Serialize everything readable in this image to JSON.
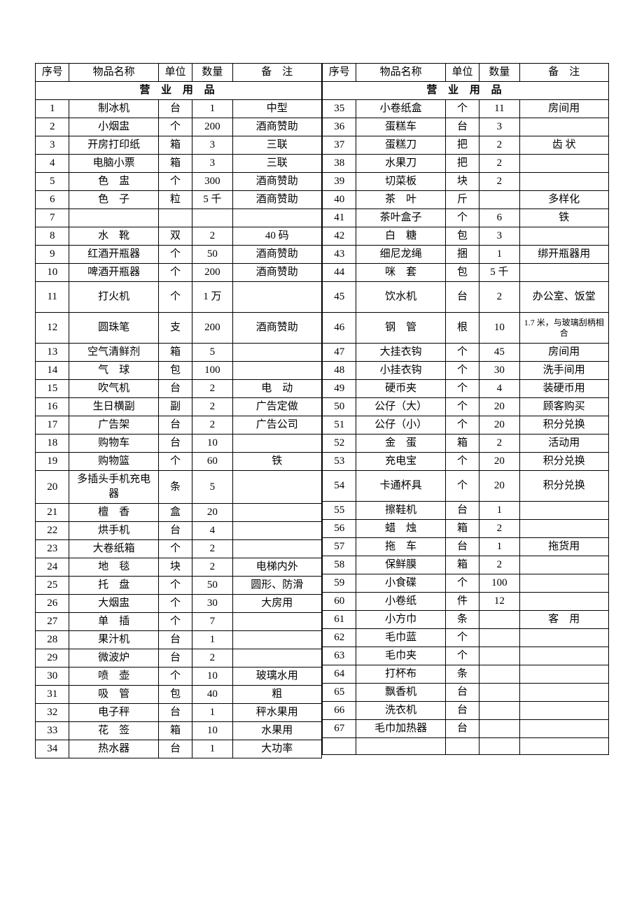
{
  "headers": {
    "seq": "序号",
    "name": "物品名称",
    "unit": "单位",
    "qty": "数量",
    "note": "备　注"
  },
  "section": "营 业 用 品",
  "left": [
    {
      "seq": "1",
      "name": "制冰机",
      "unit": "台",
      "qty": "1",
      "note": "中型"
    },
    {
      "seq": "2",
      "name": "小烟盅",
      "unit": "个",
      "qty": "200",
      "note": "酒商赞助"
    },
    {
      "seq": "3",
      "name": "开房打印纸",
      "unit": "箱",
      "qty": "3",
      "note": "三联"
    },
    {
      "seq": "4",
      "name": "电脑小票",
      "unit": "箱",
      "qty": "3",
      "note": "三联"
    },
    {
      "seq": "5",
      "name": "色　盅",
      "unit": "个",
      "qty": "300",
      "note": "酒商赞助"
    },
    {
      "seq": "6",
      "name": "色　子",
      "unit": "粒",
      "qty": "5 千",
      "note": "酒商赞助"
    },
    {
      "seq": "7",
      "name": "",
      "unit": "",
      "qty": "",
      "note": ""
    },
    {
      "seq": "8",
      "name": "水　靴",
      "unit": "双",
      "qty": "2",
      "note": "40 码"
    },
    {
      "seq": "9",
      "name": "红酒开瓶器",
      "unit": "个",
      "qty": "50",
      "note": "酒商赞助"
    },
    {
      "seq": "10",
      "name": "啤酒开瓶器",
      "unit": "个",
      "qty": "200",
      "note": "酒商赞助"
    },
    {
      "seq": "11",
      "name": "打火机",
      "unit": "个",
      "qty": "1 万",
      "note": ""
    },
    {
      "seq": "12",
      "name": "圆珠笔",
      "unit": "支",
      "qty": "200",
      "note": "酒商赞助"
    },
    {
      "seq": "13",
      "name": "空气清鲜剂",
      "unit": "箱",
      "qty": "5",
      "note": ""
    },
    {
      "seq": "14",
      "name": "气　球",
      "unit": "包",
      "qty": "100",
      "note": ""
    },
    {
      "seq": "15",
      "name": "吹气机",
      "unit": "台",
      "qty": "2",
      "note": "电　动"
    },
    {
      "seq": "16",
      "name": "生日横副",
      "unit": "副",
      "qty": "2",
      "note": "广告定做"
    },
    {
      "seq": "17",
      "name": "广告架",
      "unit": "台",
      "qty": "2",
      "note": "广告公司"
    },
    {
      "seq": "18",
      "name": "购物车",
      "unit": "台",
      "qty": "10",
      "note": ""
    },
    {
      "seq": "19",
      "name": "购物篮",
      "unit": "个",
      "qty": "60",
      "note": "铁"
    },
    {
      "seq": "20",
      "name": "多插头手机充电器",
      "unit": "条",
      "qty": "5",
      "note": ""
    },
    {
      "seq": "21",
      "name": "檀　香",
      "unit": "盒",
      "qty": "20",
      "note": ""
    },
    {
      "seq": "22",
      "name": "烘手机",
      "unit": "台",
      "qty": "4",
      "note": ""
    },
    {
      "seq": "23",
      "name": "大卷纸箱",
      "unit": "个",
      "qty": "2",
      "note": ""
    },
    {
      "seq": "24",
      "name": "地　毯",
      "unit": "块",
      "qty": "2",
      "note": "电梯内外"
    },
    {
      "seq": "25",
      "name": "托　盘",
      "unit": "个",
      "qty": "50",
      "note": "圆形、防滑"
    },
    {
      "seq": "26",
      "name": "大烟盅",
      "unit": "个",
      "qty": "30",
      "note": "大房用"
    },
    {
      "seq": "27",
      "name": "单　插",
      "unit": "个",
      "qty": "7",
      "note": ""
    },
    {
      "seq": "28",
      "name": "果汁机",
      "unit": "台",
      "qty": "1",
      "note": ""
    },
    {
      "seq": "29",
      "name": "微波炉",
      "unit": "台",
      "qty": "2",
      "note": ""
    },
    {
      "seq": "30",
      "name": "喷　壶",
      "unit": "个",
      "qty": "10",
      "note": "玻璃水用"
    },
    {
      "seq": "31",
      "name": "吸　管",
      "unit": "包",
      "qty": "40",
      "note": "粗"
    },
    {
      "seq": "32",
      "name": "电子秤",
      "unit": "台",
      "qty": "1",
      "note": "秤水果用"
    },
    {
      "seq": "33",
      "name": "花　签",
      "unit": "箱",
      "qty": "10",
      "note": "水果用"
    },
    {
      "seq": "34",
      "name": "热水器",
      "unit": "台",
      "qty": "1",
      "note": "大功率"
    }
  ],
  "right": [
    {
      "seq": "35",
      "name": "小卷纸盒",
      "unit": "个",
      "qty": "11",
      "note": "房间用"
    },
    {
      "seq": "36",
      "name": "蛋糕车",
      "unit": "台",
      "qty": "3",
      "note": ""
    },
    {
      "seq": "37",
      "name": "蛋糕刀",
      "unit": "把",
      "qty": "2",
      "note": "齿 状"
    },
    {
      "seq": "38",
      "name": "水果刀",
      "unit": "把",
      "qty": "2",
      "note": ""
    },
    {
      "seq": "39",
      "name": "切菜板",
      "unit": "块",
      "qty": "2",
      "note": ""
    },
    {
      "seq": "40",
      "name": "茶　叶",
      "unit": "斤",
      "qty": "",
      "note": "多样化"
    },
    {
      "seq": "41",
      "name": "茶叶盒子",
      "unit": "个",
      "qty": "6",
      "note": "铁"
    },
    {
      "seq": "42",
      "name": "白　糖",
      "unit": "包",
      "qty": "3",
      "note": ""
    },
    {
      "seq": "43",
      "name": "细尼龙绳",
      "unit": "捆",
      "qty": "1",
      "note": "绑开瓶器用"
    },
    {
      "seq": "44",
      "name": "咪　套",
      "unit": "包",
      "qty": "5 千",
      "note": ""
    },
    {
      "seq": "45",
      "name": "饮水机",
      "unit": "台",
      "qty": "2",
      "note": "办公室、饭堂"
    },
    {
      "seq": "46",
      "name": "钢　管",
      "unit": "根",
      "qty": "10",
      "note": "1.7 米，与玻璃刮柄相合",
      "small": true
    },
    {
      "seq": "47",
      "name": "大挂衣钩",
      "unit": "个",
      "qty": "45",
      "note": "房间用"
    },
    {
      "seq": "48",
      "name": "小挂衣钩",
      "unit": "个",
      "qty": "30",
      "note": "洗手间用"
    },
    {
      "seq": "49",
      "name": "硬币夹",
      "unit": "个",
      "qty": "4",
      "note": "装硬币用"
    },
    {
      "seq": "50",
      "name": "公仔（大）",
      "unit": "个",
      "qty": "20",
      "note": "顾客购买"
    },
    {
      "seq": "51",
      "name": "公仔（小）",
      "unit": "个",
      "qty": "20",
      "note": "积分兑换"
    },
    {
      "seq": "52",
      "name": "金　蛋",
      "unit": "箱",
      "qty": "2",
      "note": "活动用"
    },
    {
      "seq": "53",
      "name": "充电宝",
      "unit": "个",
      "qty": "20",
      "note": "积分兑换"
    },
    {
      "seq": "54",
      "name": "卡通杯具",
      "unit": "个",
      "qty": "20",
      "note": "积分兑换"
    },
    {
      "seq": "55",
      "name": "擦鞋机",
      "unit": "台",
      "qty": "1",
      "note": ""
    },
    {
      "seq": "56",
      "name": "蜡　烛",
      "unit": "箱",
      "qty": "2",
      "note": ""
    },
    {
      "seq": "57",
      "name": "拖　车",
      "unit": "台",
      "qty": "1",
      "note": "拖货用"
    },
    {
      "seq": "58",
      "name": "保鲜膜",
      "unit": "箱",
      "qty": "2",
      "note": ""
    },
    {
      "seq": "59",
      "name": "小食碟",
      "unit": "个",
      "qty": "100",
      "note": ""
    },
    {
      "seq": "60",
      "name": "小卷纸",
      "unit": "件",
      "qty": "12",
      "note": ""
    },
    {
      "seq": "61",
      "name": "小方巾",
      "unit": "条",
      "qty": "",
      "note": "客　用"
    },
    {
      "seq": "62",
      "name": "毛巾蓝",
      "unit": "个",
      "qty": "",
      "note": ""
    },
    {
      "seq": "63",
      "name": "毛巾夹",
      "unit": "个",
      "qty": "",
      "note": ""
    },
    {
      "seq": "64",
      "name": "打杯布",
      "unit": "条",
      "qty": "",
      "note": ""
    },
    {
      "seq": "65",
      "name": "飘香机",
      "unit": "台",
      "qty": "",
      "note": ""
    },
    {
      "seq": "66",
      "name": "洗衣机",
      "unit": "台",
      "qty": "",
      "note": ""
    },
    {
      "seq": "67",
      "name": "毛巾加热器",
      "unit": "台",
      "qty": "",
      "note": ""
    },
    {
      "seq": "",
      "name": "",
      "unit": "",
      "qty": "",
      "note": ""
    }
  ],
  "tall_rows_left": {
    "11": true,
    "12": true,
    "20": true
  },
  "tall_rows_right": {
    "45": true,
    "46": true,
    "54": true
  }
}
